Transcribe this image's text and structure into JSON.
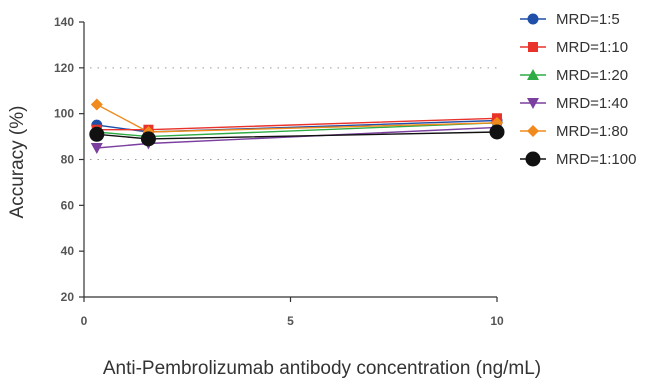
{
  "chart_data": {
    "type": "line",
    "title": "",
    "xlabel": "Anti-Pembrolizumab antibody concentration (ng/mL)",
    "ylabel": "Accuracy (%)",
    "xlim": [
      0,
      10
    ],
    "ylim": [
      20,
      140
    ],
    "x_ticks": [
      0,
      5,
      10
    ],
    "y_ticks": [
      20,
      40,
      60,
      80,
      100,
      120,
      140
    ],
    "reference_lines": [
      80,
      120
    ],
    "grid": false,
    "legend_position": "top-right",
    "x": [
      0.31,
      1.56,
      10
    ],
    "series": [
      {
        "name": "MRD=1:5",
        "color": "#1f4fa8",
        "marker": "circle",
        "values": [
          95,
          92,
          97
        ]
      },
      {
        "name": "MRD=1:10",
        "color": "#e8322a",
        "marker": "square",
        "values": [
          93,
          93,
          98
        ]
      },
      {
        "name": "MRD=1:20",
        "color": "#2eab45",
        "marker": "triangle-up",
        "values": [
          92,
          90,
          96
        ]
      },
      {
        "name": "MRD=1:40",
        "color": "#7b3fa0",
        "marker": "triangle-down",
        "values": [
          85,
          87,
          94
        ]
      },
      {
        "name": "MRD=1:80",
        "color": "#f08a1c",
        "marker": "diamond",
        "values": [
          104,
          92,
          96
        ]
      },
      {
        "name": "MRD=1:100",
        "color": "#111111",
        "marker": "big-circle",
        "values": [
          91,
          89,
          92
        ]
      }
    ]
  }
}
